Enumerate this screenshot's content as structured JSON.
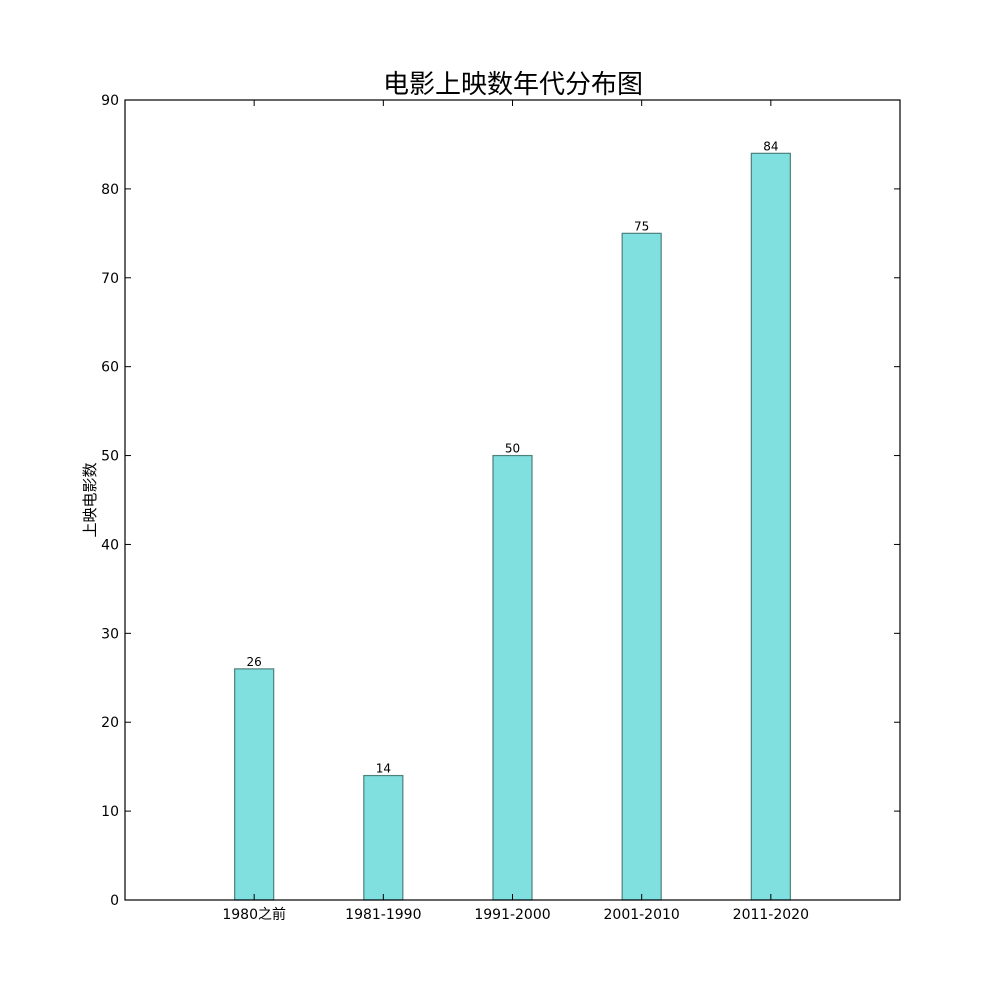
{
  "chart_data": {
    "type": "bar",
    "title": "电影上映数年代分布图",
    "xlabel": "",
    "ylabel": "上映电影数",
    "categories": [
      "1980之前",
      "1981-1990",
      "1991-2000",
      "2001-2010",
      "2011-2020"
    ],
    "values": [
      26,
      14,
      50,
      75,
      84
    ],
    "ylim": [
      0,
      90
    ],
    "yticks": [
      0,
      10,
      20,
      30,
      40,
      50,
      60,
      70,
      80,
      90
    ],
    "grid": false,
    "legend": "none",
    "colors": {
      "bar_fill": "#80e0df",
      "bar_edge": "#4d7f7d",
      "axis": "#000000"
    }
  }
}
